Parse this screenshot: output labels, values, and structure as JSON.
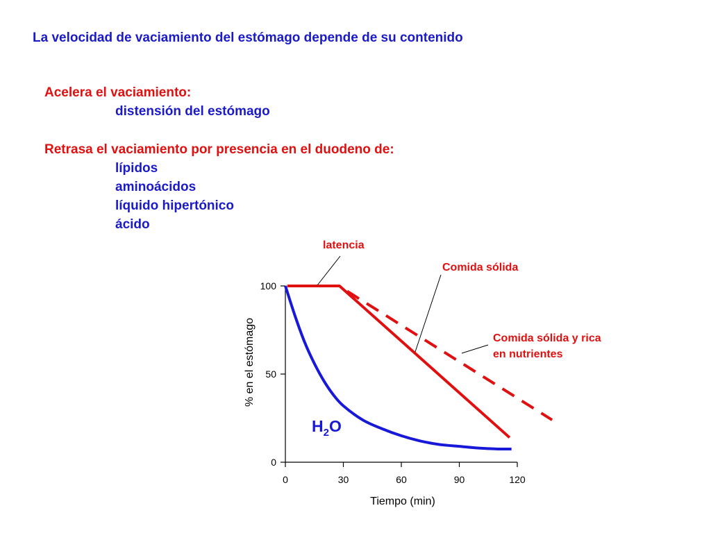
{
  "colors": {
    "text_blue": "#1a1ac8",
    "text_red": "#e01010",
    "axis": "#000000"
  },
  "headline": "La velocidad de vaciamiento del estómago depende de su contenido",
  "accelerates": {
    "heading": "Acelera el vaciamiento:",
    "items": [
      "distensión del estómago"
    ]
  },
  "delays": {
    "heading": "Retrasa el vaciamiento por presencia en el duodeno de:",
    "items": [
      "lípidos",
      "aminoácidos",
      "líquido hipertónico",
      "ácido"
    ]
  },
  "chart_data": {
    "type": "line",
    "xlabel": "Tiempo (min)",
    "ylabel": "% en el estómago",
    "xlim": [
      0,
      120
    ],
    "ylim": [
      0,
      100
    ],
    "x_ticks": [
      0,
      30,
      60,
      90,
      120
    ],
    "y_ticks": [
      0,
      50,
      100
    ],
    "grid": false,
    "series": [
      {
        "name": "H2O",
        "color": "#1818d8",
        "dash": false,
        "x": [
          0,
          5,
          10,
          15,
          20,
          25,
          30,
          40,
          50,
          60,
          70,
          80,
          90,
          100,
          110,
          117
        ],
        "y": [
          100,
          83,
          68,
          56,
          46,
          38,
          32,
          24,
          19,
          15,
          12,
          10,
          9,
          8,
          7.5,
          7.5
        ]
      },
      {
        "name": "Comida sólida",
        "color": "#e01010",
        "dash": false,
        "x": [
          1,
          28,
          116
        ],
        "y": [
          100,
          100,
          14
        ]
      },
      {
        "name": "Comida sólida y rica en nutrientes",
        "color": "#e01010",
        "dash": true,
        "x": [
          32,
          138
        ],
        "y": [
          97,
          24
        ]
      }
    ],
    "annotations": [
      {
        "text": "latencia",
        "x": 17,
        "y": 100
      },
      {
        "text": "Comida sólida",
        "x": 67,
        "y": 62
      },
      {
        "text": "Comida sólida y rica",
        "x": 91,
        "y": 63
      },
      {
        "text": "en nutrientes",
        "x": 91,
        "y": 63
      }
    ],
    "series_labels": {
      "h2o_main": "H",
      "h2o_sub": "2",
      "h2o_tail": "O"
    }
  }
}
